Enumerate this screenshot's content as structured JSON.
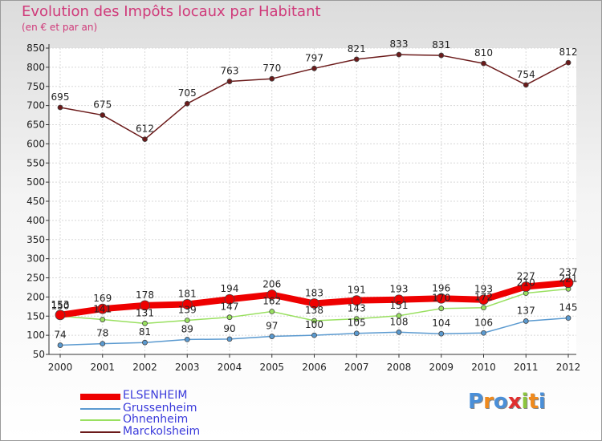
{
  "chart_data": {
    "type": "line",
    "title": "Evolution des Impôts locaux par Habitant",
    "subtitle": "(en € et par an)",
    "categories": [
      "2000",
      "2001",
      "2002",
      "2003",
      "2004",
      "2005",
      "2006",
      "2007",
      "2008",
      "2009",
      "2010",
      "2011",
      "2012"
    ],
    "ylim": [
      50,
      850
    ],
    "yticks": [
      50,
      100,
      150,
      200,
      250,
      300,
      350,
      400,
      450,
      500,
      550,
      600,
      650,
      700,
      750,
      800,
      850
    ],
    "series": [
      {
        "name": "ELSENHEIM",
        "color": "#ee0000",
        "values": [
          153,
          169,
          178,
          181,
          194,
          206,
          183,
          191,
          193,
          196,
          193,
          227,
          237
        ]
      },
      {
        "name": "Grussenheim",
        "color": "#5b9ad0",
        "values": [
          74,
          78,
          81,
          89,
          90,
          97,
          100,
          105,
          108,
          104,
          106,
          137,
          145
        ]
      },
      {
        "name": "Ohnenheim",
        "color": "#99e060",
        "values": [
          150,
          141,
          131,
          139,
          147,
          162,
          138,
          143,
          151,
          170,
          172,
          210,
          221
        ]
      },
      {
        "name": "Marckolsheim",
        "color": "#6b1a1a",
        "values": [
          695,
          675,
          612,
          705,
          763,
          770,
          797,
          821,
          833,
          831,
          810,
          754,
          812
        ]
      }
    ]
  },
  "logo": {
    "text": "Proxiti",
    "letters": [
      "P",
      "r",
      "o",
      "x",
      "i",
      "t",
      "i"
    ],
    "colors": [
      "#4a8fd8",
      "#f08a1c",
      "#4a8fd8",
      "#e03030",
      "#8cc63e",
      "#f08a1c",
      "#4a8fd8"
    ]
  }
}
